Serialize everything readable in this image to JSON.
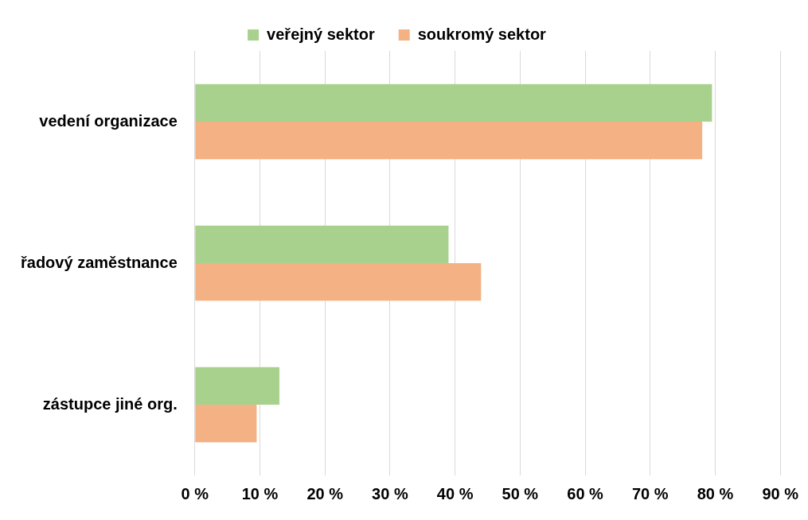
{
  "chart_data": {
    "type": "bar",
    "orientation": "horizontal",
    "categories": [
      "vedení organizace",
      "řadový zaměstnance",
      "zástupce jiné org."
    ],
    "series": [
      {
        "name": "veřejný sektor",
        "color": "#a9d18e",
        "values": [
          79.5,
          39,
          13
        ]
      },
      {
        "name": "soukromý sektor",
        "color": "#f4b183",
        "values": [
          78,
          44,
          9.5
        ]
      }
    ],
    "xlim": [
      0,
      90
    ],
    "xticks": [
      {
        "value": 0,
        "label": "0 %"
      },
      {
        "value": 10,
        "label": "10 %"
      },
      {
        "value": 20,
        "label": "20 %"
      },
      {
        "value": 30,
        "label": "30 %"
      },
      {
        "value": 40,
        "label": "40 %"
      },
      {
        "value": 50,
        "label": "50 %"
      },
      {
        "value": 60,
        "label": "60 %"
      },
      {
        "value": 70,
        "label": "70 %"
      },
      {
        "value": 80,
        "label": "80 %"
      },
      {
        "value": 90,
        "label": "90 %"
      }
    ],
    "grid": true,
    "legend": "top"
  }
}
